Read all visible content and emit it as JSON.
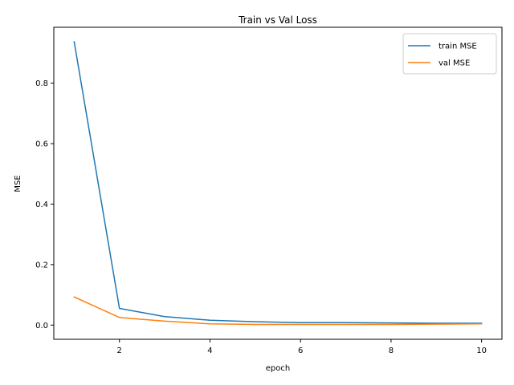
{
  "chart_data": {
    "type": "line",
    "title": "Train vs Val Loss",
    "xlabel": "epoch",
    "ylabel": "MSE",
    "x": [
      1,
      2,
      3,
      4,
      5,
      6,
      7,
      8,
      9,
      10
    ],
    "xlim": [
      0.55,
      10.45
    ],
    "ylim": [
      -0.047,
      0.985
    ],
    "xticks": [
      2,
      4,
      6,
      8,
      10
    ],
    "yticks": [
      0.0,
      0.2,
      0.4,
      0.6,
      0.8
    ],
    "ytick_labels": [
      "0.0",
      "0.2",
      "0.4",
      "0.6",
      "0.8"
    ],
    "xtick_labels": [
      "2",
      "4",
      "6",
      "8",
      "10"
    ],
    "grid": false,
    "legend_position": "top-right",
    "series": [
      {
        "name": "train MSE",
        "color": "#1f77b4",
        "values": [
          0.937,
          0.055,
          0.028,
          0.016,
          0.011,
          0.008,
          0.008,
          0.007,
          0.006,
          0.006
        ]
      },
      {
        "name": "val MSE",
        "color": "#ff7f0e",
        "values": [
          0.093,
          0.025,
          0.013,
          0.004,
          0.002,
          0.002,
          0.002,
          0.002,
          0.003,
          0.004
        ]
      }
    ]
  }
}
